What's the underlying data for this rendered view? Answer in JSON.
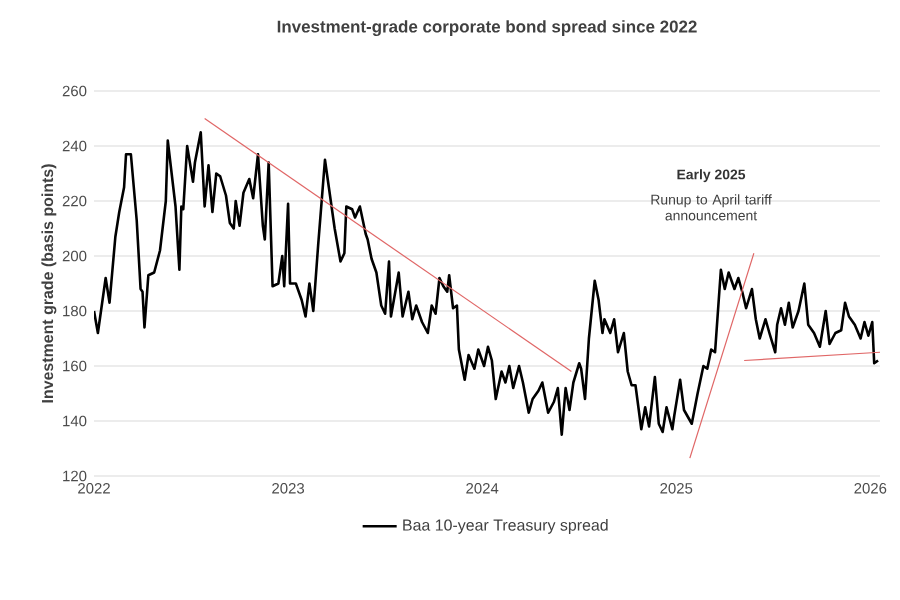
{
  "chart_data": {
    "type": "line",
    "title": "Investment-grade corporate bond spread since 2022",
    "ylabel": "Investment grade (basis points)",
    "xlim": [
      2022,
      2026.05
    ],
    "ylim": [
      120,
      260
    ],
    "xticks": [
      2022,
      2023,
      2024,
      2025,
      2026
    ],
    "yticks": [
      120,
      140,
      160,
      180,
      200,
      220,
      240,
      260
    ],
    "grid": "y",
    "legend": "bottom",
    "annotations": [
      "Early 2025",
      "Runup to April tariff announcement"
    ],
    "series": [
      {
        "name": "Baa 10-year Treasury spread",
        "color": "#000000",
        "x": [
          2022.0,
          2022.02,
          2022.06,
          2022.08,
          2022.11,
          2022.13,
          2022.155,
          2022.165,
          2022.19,
          2022.22,
          2022.24,
          2022.25,
          2022.26,
          2022.28,
          2022.31,
          2022.34,
          2022.37,
          2022.38,
          2022.42,
          2022.44,
          2022.45,
          2022.46,
          2022.48,
          2022.51,
          2022.52,
          2022.55,
          2022.57,
          2022.59,
          2022.61,
          2022.63,
          2022.65,
          2022.68,
          2022.7,
          2022.72,
          2022.73,
          2022.75,
          2022.77,
          2022.8,
          2022.82,
          2022.845,
          2022.87,
          2022.88,
          2022.9,
          2022.92,
          2022.95,
          2022.97,
          2022.98,
          2023.0,
          2023.01,
          2023.04,
          2023.07,
          2023.09,
          2023.11,
          2023.13,
          2023.155,
          2023.19,
          2023.21,
          2023.24,
          2023.27,
          2023.29,
          2023.3,
          2023.33,
          2023.345,
          2023.37,
          2023.4,
          2023.41,
          2023.43,
          2023.455,
          2023.48,
          2023.5,
          2023.52,
          2023.53,
          2023.57,
          2023.59,
          2023.62,
          2023.64,
          2023.66,
          2023.69,
          2023.72,
          2023.74,
          2023.76,
          2023.78,
          2023.8,
          2023.82,
          2023.83,
          2023.85,
          2023.87,
          2023.88,
          2023.91,
          2023.93,
          2023.96,
          2023.98,
          2024.01,
          2024.03,
          2024.05,
          2024.07,
          2024.1,
          2024.12,
          2024.14,
          2024.16,
          2024.19,
          2024.21,
          2024.24,
          2024.26,
          2024.29,
          2024.31,
          2024.34,
          2024.37,
          2024.39,
          2024.41,
          2024.43,
          2024.45,
          2024.47,
          2024.5,
          2024.51,
          2024.53,
          2024.55,
          2024.58,
          2024.6,
          2024.62,
          2024.63,
          2024.66,
          2024.68,
          2024.7,
          2024.73,
          2024.75,
          2024.77,
          2024.79,
          2024.82,
          2024.84,
          2024.86,
          2024.89,
          2024.91,
          2024.93,
          2024.95,
          2024.98,
          2024.99,
          2025.02,
          2025.04,
          2025.08,
          2025.11,
          2025.14,
          2025.16,
          2025.18,
          2025.2,
          2025.23,
          2025.25,
          2025.27,
          2025.3,
          2025.32,
          2025.34,
          2025.36,
          2025.39,
          2025.41,
          2025.43,
          2025.46,
          2025.48,
          2025.51,
          2025.52,
          2025.54,
          2025.56,
          2025.58,
          2025.6,
          2025.63,
          2025.66,
          2025.68,
          2025.71,
          2025.74,
          2025.77,
          2025.79,
          2025.82,
          2025.85,
          2025.87,
          2025.89,
          2025.92,
          2025.95,
          2025.97,
          2025.99,
          2026.01,
          2026.02,
          2026.04
        ],
        "values": [
          180,
          172,
          192,
          183,
          207,
          216,
          225,
          237,
          237,
          213,
          188,
          187,
          174,
          193,
          194,
          202,
          220,
          242,
          218,
          195,
          218,
          217,
          240,
          227,
          234,
          245,
          218,
          233,
          216,
          230,
          229,
          222,
          212,
          210,
          220,
          211,
          223,
          228,
          221,
          237,
          211,
          206,
          234,
          189,
          190,
          200,
          189,
          219,
          190,
          190,
          184,
          178,
          190,
          180,
          204,
          235,
          225,
          210,
          198,
          201,
          218,
          217,
          214,
          218,
          208,
          206,
          199,
          194,
          182,
          179,
          198,
          178,
          194,
          178,
          187,
          177,
          182,
          176,
          172,
          182,
          179,
          192,
          189,
          187,
          193,
          181,
          182,
          166,
          155,
          164,
          159,
          166,
          160,
          167,
          162,
          148,
          158,
          154,
          160,
          152,
          160,
          154,
          143,
          148,
          151,
          154,
          143,
          147,
          152,
          135,
          152,
          144,
          154,
          161,
          159,
          148,
          170,
          191,
          184,
          172,
          177,
          172,
          177,
          165,
          172,
          158,
          153,
          153,
          137,
          145,
          138,
          156,
          139,
          136,
          145,
          137,
          142,
          155,
          144,
          139,
          150,
          160,
          159,
          166,
          165,
          195,
          188,
          194,
          188,
          192,
          187,
          181,
          188,
          177,
          170,
          177,
          172,
          165,
          175,
          181,
          175,
          183,
          174,
          180,
          190,
          175,
          172,
          167,
          180,
          168,
          172,
          173,
          183,
          178,
          175,
          170,
          176,
          171,
          176,
          161,
          162
        ]
      },
      {
        "type": "line",
        "color": "#e06666",
        "x": [
          2022.57,
          2024.46
        ],
        "values": [
          250,
          158
        ]
      },
      {
        "type": "line",
        "color": "#e06666",
        "x": [
          2025.07,
          2025.4
        ],
        "values": [
          126.5,
          201
        ]
      },
      {
        "type": "line",
        "color": "#e06666",
        "x": [
          2025.35,
          2026.05
        ],
        "values": [
          162,
          165
        ]
      }
    ]
  }
}
